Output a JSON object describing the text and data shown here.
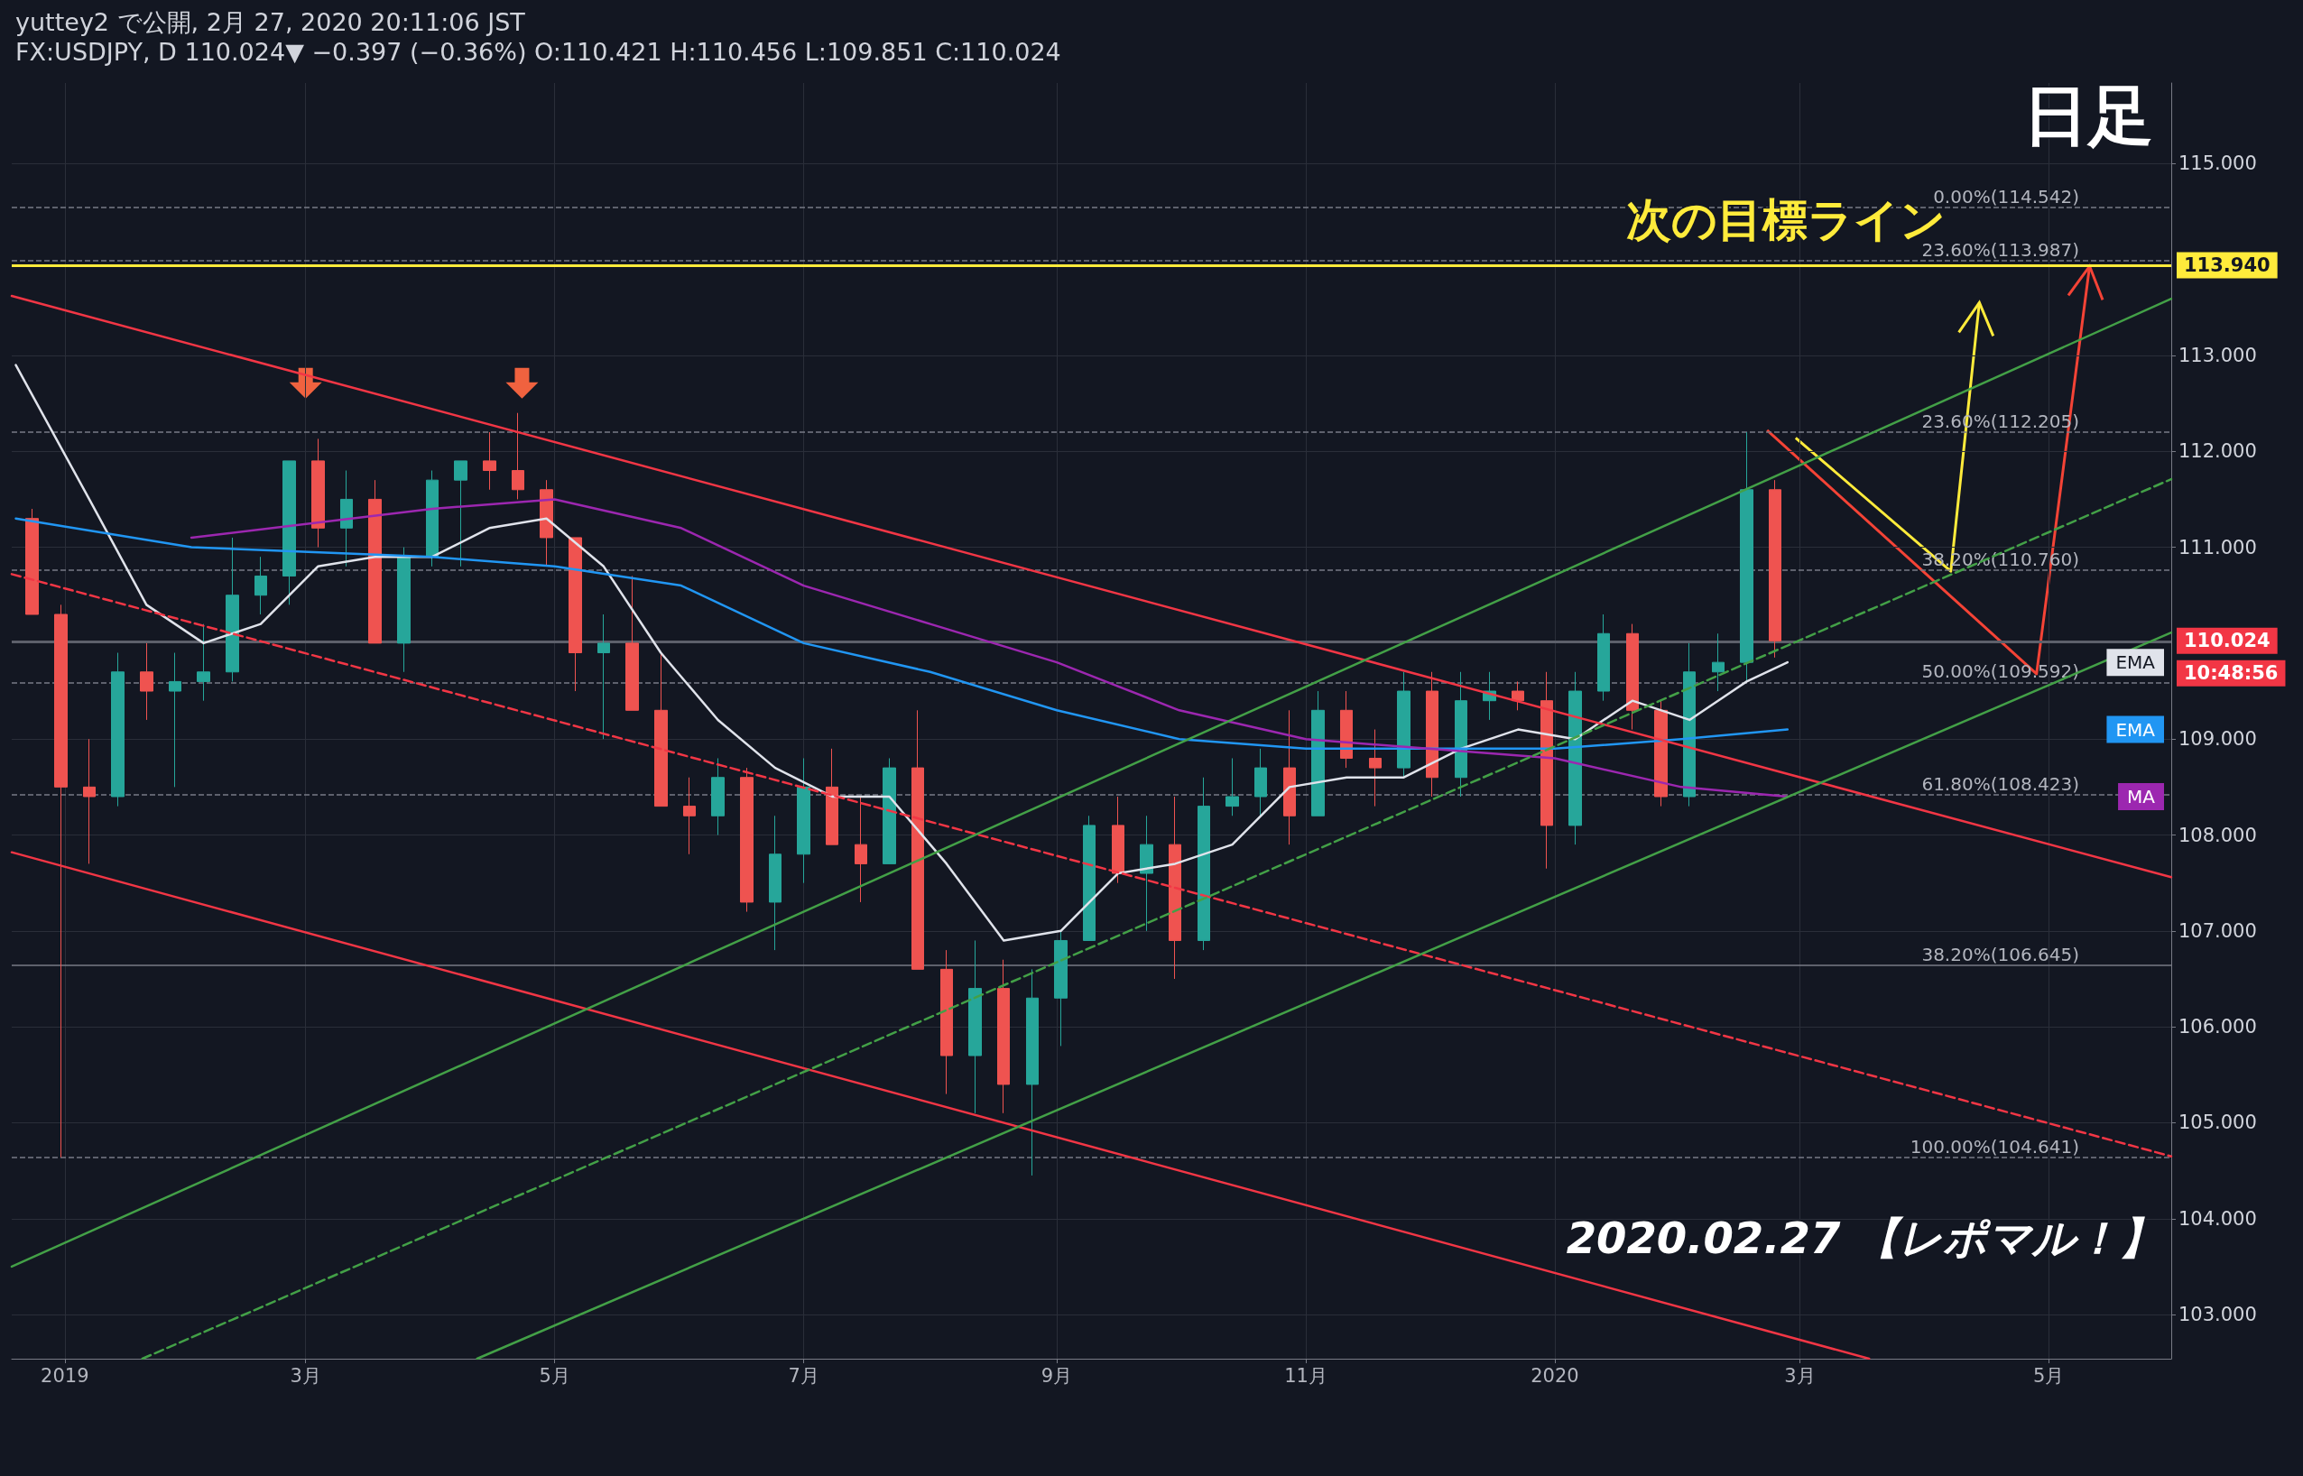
{
  "chart_data": {
    "type": "candlestick",
    "title": "yuttey2 で公開, 2月 27, 2020 20:11:06 JST",
    "subtitle": "FX:USDJPY, D 110.024▼ −0.397 (−0.36%) O:110.421 H:110.456 L:109.851 C:110.024",
    "x": [
      "2018-12-24",
      "2018-12-31",
      "2019-01-07",
      "2019-01-14",
      "2019-01-21",
      "2019-01-28",
      "2019-02-04",
      "2019-02-11",
      "2019-02-18",
      "2019-02-25",
      "2019-03-04",
      "2019-03-11",
      "2019-03-18",
      "2019-03-25",
      "2019-04-01",
      "2019-04-08",
      "2019-04-15",
      "2019-04-22",
      "2019-04-29",
      "2019-05-06",
      "2019-05-13",
      "2019-05-20",
      "2019-05-27",
      "2019-06-03",
      "2019-06-10",
      "2019-06-17",
      "2019-06-24",
      "2019-07-01",
      "2019-07-08",
      "2019-07-15",
      "2019-07-22",
      "2019-07-29",
      "2019-08-05",
      "2019-08-12",
      "2019-08-19",
      "2019-08-26",
      "2019-09-02",
      "2019-09-09",
      "2019-09-16",
      "2019-09-23",
      "2019-09-30",
      "2019-10-07",
      "2019-10-14",
      "2019-10-21",
      "2019-10-28",
      "2019-11-04",
      "2019-11-11",
      "2019-11-18",
      "2019-11-25",
      "2019-12-02",
      "2019-12-09",
      "2019-12-16",
      "2019-12-23",
      "2019-12-30",
      "2020-01-06",
      "2020-01-13",
      "2020-01-20",
      "2020-01-27",
      "2020-02-03",
      "2020-02-10",
      "2020-02-17",
      "2020-02-24"
    ],
    "ohlc": [
      [
        111.3,
        111.4,
        110.3,
        110.3
      ],
      [
        110.3,
        110.4,
        104.64,
        108.5
      ],
      [
        108.5,
        109.0,
        107.7,
        108.4
      ],
      [
        108.4,
        109.9,
        108.3,
        109.7
      ],
      [
        109.7,
        110.0,
        109.2,
        109.5
      ],
      [
        109.5,
        109.9,
        108.5,
        109.6
      ],
      [
        109.6,
        110.2,
        109.4,
        109.7
      ],
      [
        109.7,
        111.1,
        109.6,
        110.5
      ],
      [
        110.5,
        110.9,
        110.3,
        110.7
      ],
      [
        110.7,
        111.9,
        110.4,
        111.9
      ],
      [
        111.9,
        112.13,
        111.0,
        111.2
      ],
      [
        111.2,
        111.8,
        110.8,
        111.5
      ],
      [
        111.5,
        111.7,
        110.0,
        110.0
      ],
      [
        110.0,
        111.0,
        109.7,
        110.9
      ],
      [
        110.9,
        111.8,
        110.8,
        111.7
      ],
      [
        111.7,
        111.9,
        110.8,
        111.9
      ],
      [
        111.9,
        112.2,
        111.6,
        111.8
      ],
      [
        111.8,
        112.4,
        111.5,
        111.6
      ],
      [
        111.6,
        111.7,
        110.8,
        111.1
      ],
      [
        111.1,
        111.1,
        109.5,
        109.9
      ],
      [
        109.9,
        110.3,
        109.0,
        110.0
      ],
      [
        110.0,
        110.7,
        109.3,
        109.3
      ],
      [
        109.3,
        109.9,
        108.3,
        108.3
      ],
      [
        108.3,
        108.6,
        107.8,
        108.2
      ],
      [
        108.2,
        108.8,
        108.0,
        108.6
      ],
      [
        108.6,
        108.7,
        107.2,
        107.3
      ],
      [
        107.3,
        108.2,
        106.8,
        107.8
      ],
      [
        107.8,
        108.8,
        107.5,
        108.5
      ],
      [
        108.5,
        108.9,
        107.9,
        107.9
      ],
      [
        107.9,
        108.4,
        107.3,
        107.7
      ],
      [
        107.7,
        108.8,
        107.7,
        108.7
      ],
      [
        108.7,
        109.3,
        106.6,
        106.6
      ],
      [
        106.6,
        106.8,
        105.3,
        105.7
      ],
      [
        105.7,
        106.9,
        105.1,
        106.4
      ],
      [
        106.4,
        106.7,
        105.1,
        105.4
      ],
      [
        105.4,
        106.6,
        104.45,
        106.3
      ],
      [
        106.3,
        107.0,
        105.8,
        106.9
      ],
      [
        106.9,
        108.2,
        106.9,
        108.1
      ],
      [
        108.1,
        108.4,
        107.5,
        107.6
      ],
      [
        107.6,
        108.2,
        107.0,
        107.9
      ],
      [
        107.9,
        108.4,
        106.5,
        106.9
      ],
      [
        106.9,
        108.6,
        106.8,
        108.3
      ],
      [
        108.3,
        108.8,
        108.2,
        108.4
      ],
      [
        108.4,
        108.9,
        108.2,
        108.7
      ],
      [
        108.7,
        109.3,
        107.9,
        108.2
      ],
      [
        108.2,
        109.5,
        108.2,
        109.3
      ],
      [
        109.3,
        109.5,
        108.7,
        108.8
      ],
      [
        108.8,
        109.1,
        108.3,
        108.7
      ],
      [
        108.7,
        109.7,
        108.6,
        109.5
      ],
      [
        109.5,
        109.7,
        108.4,
        108.6
      ],
      [
        108.6,
        109.7,
        108.4,
        109.4
      ],
      [
        109.4,
        109.7,
        109.2,
        109.5
      ],
      [
        109.5,
        109.6,
        109.3,
        109.4
      ],
      [
        109.4,
        109.7,
        107.65,
        108.1
      ],
      [
        108.1,
        109.7,
        107.9,
        109.5
      ],
      [
        109.5,
        110.3,
        109.4,
        110.1
      ],
      [
        110.1,
        110.2,
        109.1,
        109.3
      ],
      [
        109.3,
        109.4,
        108.3,
        108.4
      ],
      [
        108.4,
        110.0,
        108.3,
        109.7
      ],
      [
        109.7,
        110.1,
        109.5,
        109.8
      ],
      [
        109.8,
        112.2,
        109.6,
        111.6
      ],
      [
        111.6,
        111.7,
        109.85,
        110.024
      ]
    ],
    "colors": [
      "#ef5350",
      "#ef5350",
      "#ef5350",
      "#26a69a",
      "#ef5350",
      "#26a69a",
      "#26a69a",
      "#26a69a",
      "#26a69a",
      "#26a69a",
      "#ef5350",
      "#26a69a",
      "#ef5350",
      "#26a69a",
      "#26a69a",
      "#26a69a",
      "#ef5350",
      "#ef5350",
      "#ef5350",
      "#ef5350",
      "#26a69a",
      "#ef5350",
      "#ef5350",
      "#ef5350",
      "#26a69a",
      "#ef5350",
      "#26a69a",
      "#26a69a",
      "#ef5350",
      "#ef5350",
      "#26a69a",
      "#ef5350",
      "#ef5350",
      "#26a69a",
      "#ef5350",
      "#26a69a",
      "#26a69a",
      "#26a69a",
      "#ef5350",
      "#26a69a",
      "#ef5350",
      "#26a69a",
      "#26a69a",
      "#26a69a",
      "#ef5350",
      "#26a69a",
      "#ef5350",
      "#ef5350",
      "#26a69a",
      "#ef5350",
      "#26a69a",
      "#26a69a",
      "#ef5350",
      "#ef5350",
      "#26a69a",
      "#26a69a",
      "#ef5350",
      "#ef5350",
      "#26a69a",
      "#26a69a",
      "#26a69a",
      "#ef5350"
    ],
    "series": [
      {
        "name": "EMA",
        "type": "line",
        "color": "#e0e3eb",
        "x": [
          "2018-12-20",
          "2019-01-07",
          "2019-01-21",
          "2019-02-04",
          "2019-02-18",
          "2019-03-04",
          "2019-03-18",
          "2019-04-01",
          "2019-04-15",
          "2019-04-29",
          "2019-05-13",
          "2019-05-27",
          "2019-06-10",
          "2019-06-24",
          "2019-07-08",
          "2019-07-22",
          "2019-08-05",
          "2019-08-19",
          "2019-09-02",
          "2019-09-16",
          "2019-09-30",
          "2019-10-14",
          "2019-10-28",
          "2019-11-11",
          "2019-11-25",
          "2019-12-09",
          "2019-12-23",
          "2020-01-06",
          "2020-01-20",
          "2020-02-03",
          "2020-02-17",
          "2020-02-27"
        ],
        "values": [
          112.9,
          111.5,
          110.4,
          110.0,
          110.2,
          110.8,
          110.9,
          110.9,
          111.2,
          111.3,
          110.8,
          109.9,
          109.2,
          108.7,
          108.4,
          108.4,
          107.7,
          106.9,
          107.0,
          107.6,
          107.7,
          107.9,
          108.5,
          108.6,
          108.6,
          108.9,
          109.1,
          109.0,
          109.4,
          109.2,
          109.6,
          109.8
        ]
      },
      {
        "name": "EMA",
        "type": "line",
        "color": "#2196f3",
        "x": [
          "2018-12-20",
          "2019-02-01",
          "2019-04-01",
          "2019-05-01",
          "2019-06-01",
          "2019-07-01",
          "2019-08-01",
          "2019-09-01",
          "2019-10-01",
          "2019-11-01",
          "2019-12-01",
          "2020-01-01",
          "2020-02-01",
          "2020-02-27"
        ],
        "values": [
          111.3,
          111.0,
          110.9,
          110.8,
          110.6,
          110.0,
          109.7,
          109.3,
          109.0,
          108.9,
          108.9,
          108.9,
          109.0,
          109.1
        ]
      },
      {
        "name": "MA",
        "type": "line",
        "color": "#9c27b0",
        "x": [
          "2019-02-01",
          "2019-04-01",
          "2019-05-01",
          "2019-06-01",
          "2019-07-01",
          "2019-08-01",
          "2019-09-01",
          "2019-10-01",
          "2019-11-01",
          "2019-12-01",
          "2020-01-01",
          "2020-02-01",
          "2020-02-27"
        ],
        "values": [
          111.1,
          111.4,
          111.5,
          111.2,
          110.6,
          110.2,
          109.8,
          109.3,
          109.0,
          108.9,
          108.8,
          108.5,
          108.4
        ]
      },
      {
        "type": "line",
        "color": "#f23645",
        "line_style": "solid",
        "x": [
          "2018-12-19",
          "2020-05-31"
        ],
        "values": [
          113.62,
          107.56
        ]
      },
      {
        "type": "line",
        "color": "#f23645",
        "line_style": "solid",
        "x": [
          "2018-12-19",
          "2020-03-18"
        ],
        "values": [
          107.82,
          102.54
        ]
      },
      {
        "type": "line",
        "color": "#f23645",
        "line_style": "dashed",
        "x": [
          "2018-12-19",
          "2020-05-31"
        ],
        "values": [
          110.72,
          104.65
        ]
      },
      {
        "type": "line",
        "color": "#43a047",
        "line_style": "solid",
        "x": [
          "2018-12-19",
          "2020-05-31"
        ],
        "values": [
          103.5,
          113.59
        ]
      },
      {
        "type": "line",
        "color": "#43a047",
        "line_style": "solid",
        "x": [
          "2019-04-12",
          "2020-05-31"
        ],
        "values": [
          102.54,
          110.11
        ]
      },
      {
        "type": "line",
        "color": "#43a047",
        "line_style": "dashed",
        "x": [
          "2019-01-20",
          "2020-05-31"
        ],
        "values": [
          102.54,
          111.71
        ]
      }
    ],
    "xlim": [
      "2018-12-19",
      "2020-05-31"
    ],
    "ylim": [
      102.54,
      115.84
    ],
    "xticks": [
      {
        "value": "2019-01-01",
        "label": "2019"
      },
      {
        "value": "2019-03-01",
        "label": "3月"
      },
      {
        "value": "2019-05-01",
        "label": "5月"
      },
      {
        "value": "2019-07-01",
        "label": "7月"
      },
      {
        "value": "2019-09-01",
        "label": "9月"
      },
      {
        "value": "2019-11-01",
        "label": "11月"
      },
      {
        "value": "2020-01-01",
        "label": "2020"
      },
      {
        "value": "2020-03-01",
        "label": "3月"
      },
      {
        "value": "2020-05-01",
        "label": "5月"
      }
    ],
    "yticks": [
      {
        "value": 103,
        "label": "103.000"
      },
      {
        "value": 104,
        "label": "104.000"
      },
      {
        "value": 105,
        "label": "105.000"
      },
      {
        "value": 106,
        "label": "106.000"
      },
      {
        "value": 107,
        "label": "107.000"
      },
      {
        "value": 108,
        "label": "108.000"
      },
      {
        "value": 109,
        "label": "109.000"
      },
      {
        "value": 111,
        "label": "111.000"
      },
      {
        "value": 112,
        "label": "112.000"
      },
      {
        "value": 113,
        "label": "113.000"
      },
      {
        "value": 115,
        "label": "115.000"
      }
    ],
    "grid": true,
    "legend": false,
    "marker": "none",
    "ref_lines": [
      {
        "axis": "y",
        "value": 114.542,
        "label": "0.00%(114.542)",
        "color": "#787b86",
        "line_style": "dashed"
      },
      {
        "axis": "y",
        "value": 113.987,
        "label": "23.60%(113.987)",
        "color": "#787b86",
        "line_style": "dashed"
      },
      {
        "axis": "y",
        "value": 113.94,
        "color": "#ffeb3b",
        "line_style": "solid"
      },
      {
        "axis": "y",
        "value": 112.205,
        "label": "23.60%(112.205)",
        "color": "#787b86",
        "line_style": "dashed"
      },
      {
        "axis": "y",
        "value": 110.76,
        "label": "38.20%(110.760)",
        "color": "#787b86",
        "line_style": "dashed"
      },
      {
        "axis": "y",
        "value": 110.024,
        "color": "#5d606b",
        "line_style": "solid"
      },
      {
        "axis": "y",
        "value": 109.592,
        "label": "50.00%(109.592)",
        "color": "#787b86",
        "line_style": "dashed"
      },
      {
        "axis": "y",
        "value": 108.423,
        "label": "61.80%(108.423)",
        "color": "#787b86",
        "line_style": "dashed"
      },
      {
        "axis": "y",
        "value": 106.645,
        "label": "38.20%(106.645)",
        "color": "#787b86",
        "line_style": "solid"
      },
      {
        "axis": "y",
        "value": 104.641,
        "label": "100.00%(104.641)",
        "color": "#787b86",
        "line_style": "dashed"
      }
    ],
    "annotations": [
      "日足",
      {
        "text": "次の目標ライン",
        "y": 113.94
      },
      "2020.02.27 【レポマル！】",
      "113.940",
      "110.024",
      "10:48:56"
    ]
  }
}
